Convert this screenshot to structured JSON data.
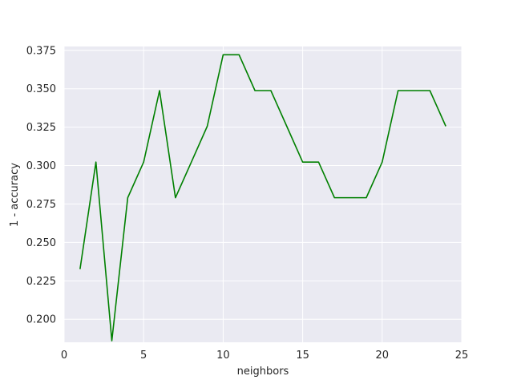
{
  "chart_data": {
    "type": "line",
    "title": "",
    "xlabel": "neighbors",
    "ylabel": "1 - accuracy",
    "xlim": [
      0,
      25
    ],
    "ylim": [
      0.185,
      0.3775
    ],
    "xticks": [
      0,
      5,
      10,
      15,
      20,
      25
    ],
    "xtick_labels": [
      "0",
      "5",
      "10",
      "15",
      "20",
      "25"
    ],
    "yticks": [
      0.2,
      0.225,
      0.25,
      0.275,
      0.3,
      0.325,
      0.35,
      0.375
    ],
    "ytick_labels": [
      "0.200",
      "0.225",
      "0.250",
      "0.275",
      "0.300",
      "0.325",
      "0.350",
      "0.375"
    ],
    "grid": true,
    "background": "#eaeaf2",
    "grid_color": "#ffffff",
    "series": [
      {
        "color": "#008000",
        "x": [
          1,
          2,
          3,
          4,
          5,
          6,
          7,
          8,
          9,
          10,
          11,
          12,
          13,
          14,
          15,
          16,
          17,
          18,
          19,
          20,
          21,
          22,
          23,
          24
        ],
        "y": [
          0.2326,
          0.3023,
          0.186,
          0.2791,
          0.3023,
          0.3488,
          0.2791,
          0.3023,
          0.3256,
          0.3721,
          0.3721,
          0.3488,
          0.3488,
          0.3256,
          0.3023,
          0.3023,
          0.2791,
          0.2791,
          0.2791,
          0.3023,
          0.3488,
          0.3488,
          0.3488,
          0.3256
        ]
      }
    ]
  }
}
